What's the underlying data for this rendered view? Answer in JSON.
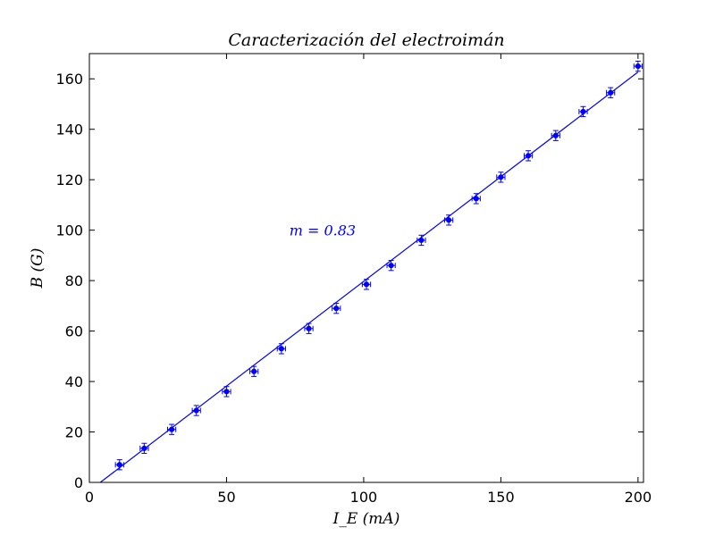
{
  "chart_data": {
    "type": "scatter",
    "title": "Caracterización del electroimán",
    "xlabel": "I_E (mA)",
    "ylabel": "B (G)",
    "xlim": [
      0,
      202
    ],
    "ylim": [
      0,
      170
    ],
    "xticks": [
      0,
      50,
      100,
      150,
      200
    ],
    "yticks": [
      0,
      20,
      40,
      60,
      80,
      100,
      120,
      140,
      160
    ],
    "xtick_labels": [
      "0",
      "50",
      "100",
      "150",
      "200"
    ],
    "ytick_labels": [
      "0",
      "20",
      "40",
      "60",
      "80",
      "100",
      "120",
      "140",
      "160"
    ],
    "grid": false,
    "legend": "none",
    "color": "#0000ff",
    "series": [
      {
        "x": [
          11,
          20,
          30,
          39,
          50,
          60,
          70,
          80,
          90,
          101,
          110,
          121,
          131,
          141,
          150,
          160,
          170,
          180,
          190,
          200
        ],
        "y": [
          7,
          13.5,
          21,
          28.5,
          36,
          44,
          53,
          61,
          69,
          78.5,
          86,
          96,
          104,
          112.5,
          121,
          129.5,
          137.5,
          147,
          154.5,
          165
        ],
        "y_err": 2,
        "x_err": 1.5
      }
    ],
    "fit_line": {
      "slope": 0.83,
      "intercept": -3.3,
      "x_range": [
        0,
        200
      ]
    },
    "annotation": {
      "text": "m = 0.83",
      "x": 85,
      "y": 100
    }
  }
}
